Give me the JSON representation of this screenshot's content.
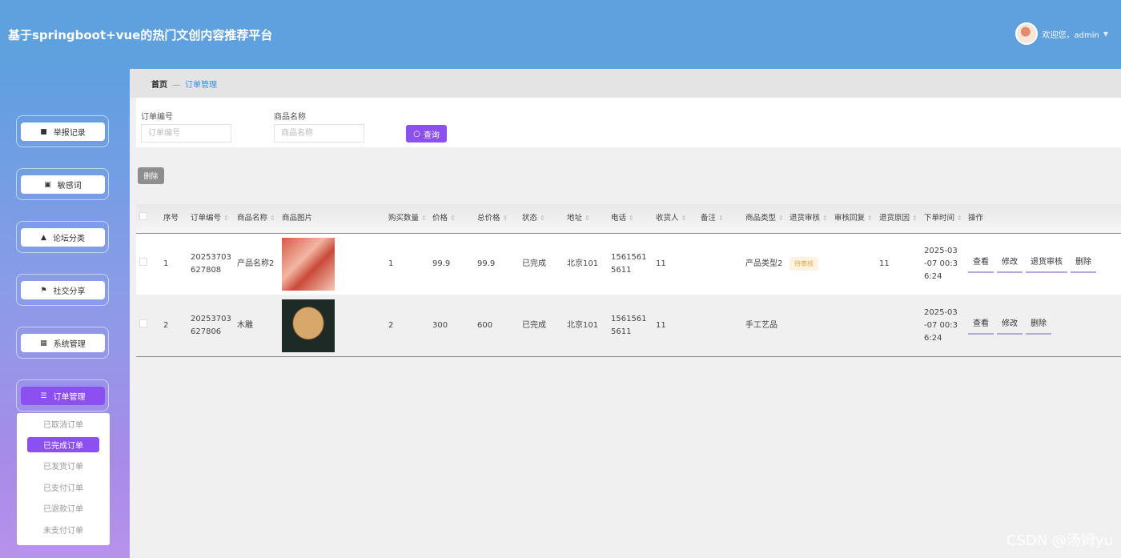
{
  "header": {
    "title": "基于springboot+vue的热门文创内容推荐平台",
    "welcome": "欢迎您，admin"
  },
  "sidebar": {
    "items": [
      {
        "label": "举报记录",
        "icon": "comment-icon",
        "glyph": "■"
      },
      {
        "label": "敏感词",
        "icon": "clipboard-icon",
        "glyph": "▣"
      },
      {
        "label": "论坛分类",
        "icon": "user-icon",
        "glyph": "▲"
      },
      {
        "label": "社交分享",
        "icon": "flag-icon",
        "glyph": "⚑"
      },
      {
        "label": "系统管理",
        "icon": "grid-icon",
        "glyph": "▦"
      },
      {
        "label": "订单管理",
        "icon": "sliders-icon",
        "glyph": "☰",
        "active": true
      }
    ],
    "submenu": [
      {
        "label": "已取消订单"
      },
      {
        "label": "已完成订单",
        "active": true
      },
      {
        "label": "已发货订单"
      },
      {
        "label": "已支付订单"
      },
      {
        "label": "已退款订单"
      },
      {
        "label": "未支付订单"
      }
    ]
  },
  "breadcrumb": {
    "home": "首页",
    "sep": "—",
    "current": "订单管理"
  },
  "search": {
    "order_no_label": "订单编号",
    "order_no_placeholder": "订单编号",
    "goods_label": "商品名称",
    "goods_placeholder": "商品名称",
    "query_label": "查询"
  },
  "toolbar": {
    "delete_label": "删除"
  },
  "table": {
    "columns": [
      "序号",
      "订单编号",
      "商品名称",
      "商品图片",
      "购买数量",
      "价格",
      "总价格",
      "状态",
      "地址",
      "电话",
      "收货人",
      "备注",
      "商品类型",
      "退货审核",
      "审核回复",
      "退货原因",
      "下单时间",
      "操作"
    ],
    "sortable": [
      false,
      true,
      true,
      false,
      true,
      true,
      true,
      true,
      true,
      true,
      true,
      true,
      true,
      true,
      true,
      true,
      true,
      false
    ],
    "rows": [
      {
        "cells": [
          "1",
          "20253703627808",
          "产品名称2",
          "",
          "1",
          "99.9",
          "99.9",
          "已完成",
          "北京101",
          "15615615611",
          "11",
          "",
          "产品类型2",
          "待审核",
          "",
          "11",
          "2025-03-07 00:36:24"
        ],
        "actions": [
          "查看",
          "修改",
          "退货审核",
          "删除"
        ]
      },
      {
        "cells": [
          "2",
          "20253703627806",
          "木雕",
          "",
          "2",
          "300",
          "600",
          "已完成",
          "北京101",
          "15615615611",
          "11",
          "",
          "手工艺品",
          "",
          "",
          "",
          "2025-03-07 00:36:24"
        ],
        "actions": [
          "查看",
          "修改",
          "删除"
        ]
      }
    ]
  },
  "watermark": "CSDN @汤姆yu",
  "colors": {
    "header": "#5fa0de",
    "accent": "#8c4ff0",
    "pending": "#e6a23c"
  }
}
